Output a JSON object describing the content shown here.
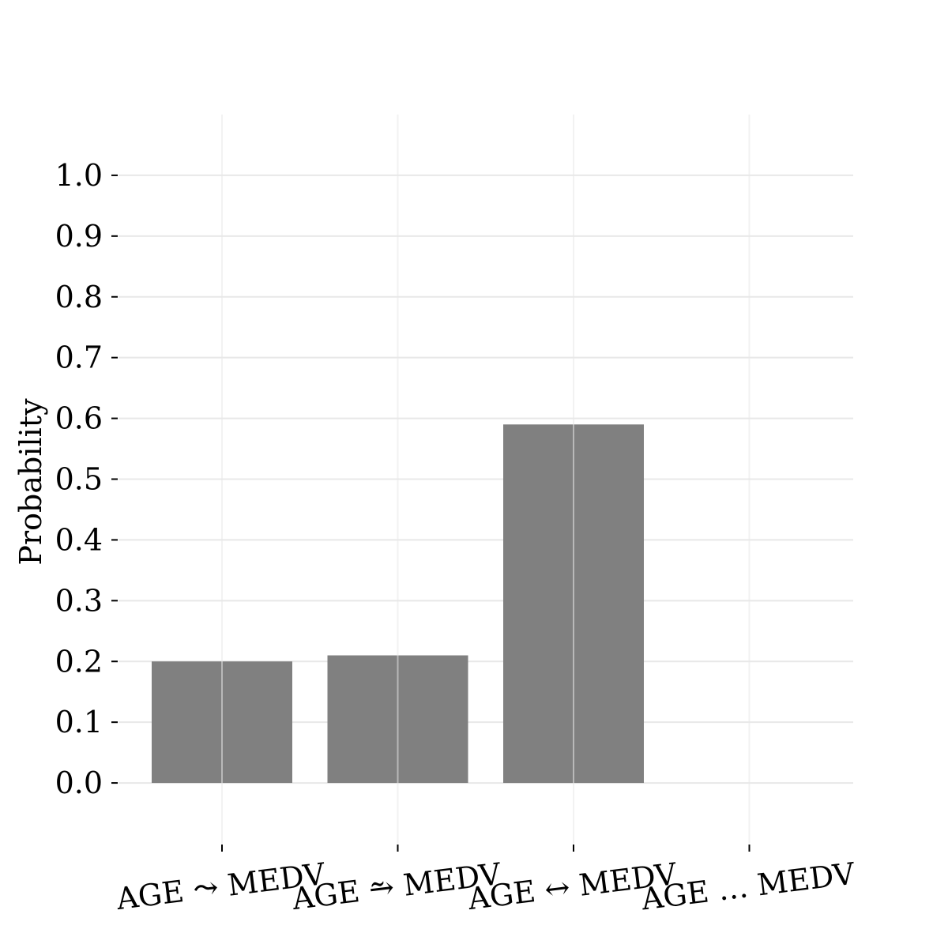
{
  "chart_data": {
    "type": "bar",
    "categories": [
      "AGE ⤳ MEDV",
      "AGE ⥲ MEDV",
      "AGE ↔ MEDV",
      "AGE … MEDV"
    ],
    "values": [
      0.2,
      0.21,
      0.59,
      0.0
    ],
    "ylabel": "Probability",
    "xlabel": "",
    "ylim": [
      -0.1,
      1.1
    ],
    "yticks": [
      0.0,
      0.1,
      0.2,
      0.3,
      0.4,
      0.5,
      0.6,
      0.7,
      0.8,
      0.9,
      1.0
    ],
    "ytick_labels": [
      "0.0",
      "0.1",
      "0.2",
      "0.3",
      "0.4",
      "0.5",
      "0.6",
      "0.7",
      "0.8",
      "0.9",
      "1.0"
    ],
    "grid": true,
    "bar_color": "#808080",
    "grid_color": "#e8e8e8"
  }
}
